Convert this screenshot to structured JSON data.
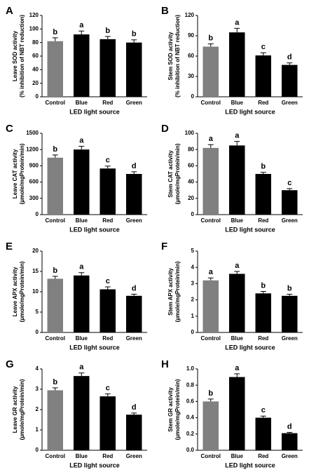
{
  "chart_data": [
    {
      "type": "bar",
      "panel_label": "A",
      "ylabel": [
        "Leave SOD activity",
        "(% inhibition of NBT reduction)"
      ],
      "xlabel": "LED light source",
      "categories": [
        "Control",
        "Blue",
        "Red",
        "Green"
      ],
      "values": [
        82,
        92,
        85,
        80
      ],
      "errors": [
        5,
        5,
        4,
        4
      ],
      "letters": [
        "b",
        "a",
        "b",
        "b"
      ],
      "colors": [
        "#808080",
        "#000000",
        "#000000",
        "#000000"
      ],
      "ylim": [
        0,
        120
      ],
      "yticks": [
        0,
        20,
        40,
        60,
        80,
        100,
        120
      ]
    },
    {
      "type": "bar",
      "panel_label": "B",
      "ylabel": [
        "Stem SOD activity",
        "(% inhibition of NBT reduction)"
      ],
      "xlabel": "LED light source",
      "categories": [
        "Control",
        "Blue",
        "Red",
        "Green"
      ],
      "values": [
        74,
        95,
        61,
        47
      ],
      "errors": [
        4,
        6,
        4,
        3
      ],
      "letters": [
        "b",
        "a",
        "c",
        "d"
      ],
      "colors": [
        "#808080",
        "#000000",
        "#000000",
        "#000000"
      ],
      "ylim": [
        0,
        120
      ],
      "yticks": [
        0,
        30,
        60,
        90,
        120
      ]
    },
    {
      "type": "bar",
      "panel_label": "C",
      "ylabel": [
        "Leave CAT activity",
        "(µmole/mgProtein/min)"
      ],
      "xlabel": "LED light source",
      "categories": [
        "Control",
        "Blue",
        "Red",
        "Green"
      ],
      "values": [
        1050,
        1200,
        850,
        750
      ],
      "errors": [
        50,
        60,
        45,
        40
      ],
      "letters": [
        "b",
        "a",
        "c",
        "d"
      ],
      "colors": [
        "#808080",
        "#000000",
        "#000000",
        "#000000"
      ],
      "ylim": [
        0,
        1500
      ],
      "yticks": [
        0,
        300,
        600,
        900,
        1200,
        1500
      ]
    },
    {
      "type": "bar",
      "panel_label": "D",
      "ylabel": [
        "Stem CAT activity",
        "(µmole/mgProtein/min)"
      ],
      "xlabel": "LED light source",
      "categories": [
        "Control",
        "Blue",
        "Red",
        "Green"
      ],
      "values": [
        82,
        85,
        50,
        30
      ],
      "errors": [
        4,
        5,
        2,
        2
      ],
      "letters": [
        "a",
        "a",
        "b",
        "c"
      ],
      "colors": [
        "#808080",
        "#000000",
        "#000000",
        "#000000"
      ],
      "ylim": [
        0,
        100
      ],
      "yticks": [
        0,
        20,
        40,
        60,
        80,
        100
      ]
    },
    {
      "type": "bar",
      "panel_label": "E",
      "ylabel": [
        "Leave APX activity",
        "(µmole/mgProtein/min)"
      ],
      "xlabel": "LED light source",
      "categories": [
        "Control",
        "Blue",
        "Red",
        "Green"
      ],
      "values": [
        13.2,
        14,
        10.6,
        9
      ],
      "errors": [
        0.6,
        0.7,
        0.6,
        0.4
      ],
      "letters": [
        "b",
        "a",
        "c",
        "d"
      ],
      "colors": [
        "#808080",
        "#000000",
        "#000000",
        "#000000"
      ],
      "ylim": [
        0,
        20
      ],
      "yticks": [
        0,
        5,
        10,
        15,
        20
      ]
    },
    {
      "type": "bar",
      "panel_label": "F",
      "ylabel": [
        "Stem APX activity",
        "(µmole/mgProtein/min)"
      ],
      "xlabel": "LED light source",
      "categories": [
        "Control",
        "Blue",
        "Red",
        "Green"
      ],
      "values": [
        3.2,
        3.6,
        2.4,
        2.25
      ],
      "errors": [
        0.15,
        0.15,
        0.12,
        0.1
      ],
      "letters": [
        "a",
        "a",
        "b",
        "b"
      ],
      "colors": [
        "#808080",
        "#000000",
        "#000000",
        "#000000"
      ],
      "ylim": [
        0,
        5
      ],
      "yticks": [
        0,
        1,
        2,
        3,
        4,
        5
      ]
    },
    {
      "type": "bar",
      "panel_label": "G",
      "ylabel": [
        "Leave GR activity",
        "(µmole/mgProtein/min)"
      ],
      "xlabel": "LED light source",
      "categories": [
        "Control",
        "Blue",
        "Red",
        "Green"
      ],
      "values": [
        2.95,
        3.65,
        2.65,
        1.75
      ],
      "errors": [
        0.12,
        0.15,
        0.12,
        0.08
      ],
      "letters": [
        "b",
        "a",
        "c",
        "d"
      ],
      "colors": [
        "#808080",
        "#000000",
        "#000000",
        "#000000"
      ],
      "ylim": [
        0,
        4
      ],
      "yticks": [
        0,
        1,
        2,
        3,
        4
      ]
    },
    {
      "type": "bar",
      "panel_label": "H",
      "ylabel": [
        "Stem GR activity",
        "(µmole/mgProtein/min)"
      ],
      "xlabel": "LED light source",
      "categories": [
        "Control",
        "Blue",
        "Red",
        "Green"
      ],
      "values": [
        0.6,
        0.9,
        0.4,
        0.21
      ],
      "errors": [
        0.03,
        0.04,
        0.02,
        0.01
      ],
      "letters": [
        "b",
        "a",
        "c",
        "d"
      ],
      "colors": [
        "#808080",
        "#000000",
        "#000000",
        "#000000"
      ],
      "ylim": [
        0,
        1
      ],
      "yticks": [
        {
          "value": 0,
          "label": "0.0"
        },
        0.2,
        0.4,
        0.6,
        0.8,
        {
          "value": 1,
          "label": "1.0"
        }
      ]
    }
  ]
}
